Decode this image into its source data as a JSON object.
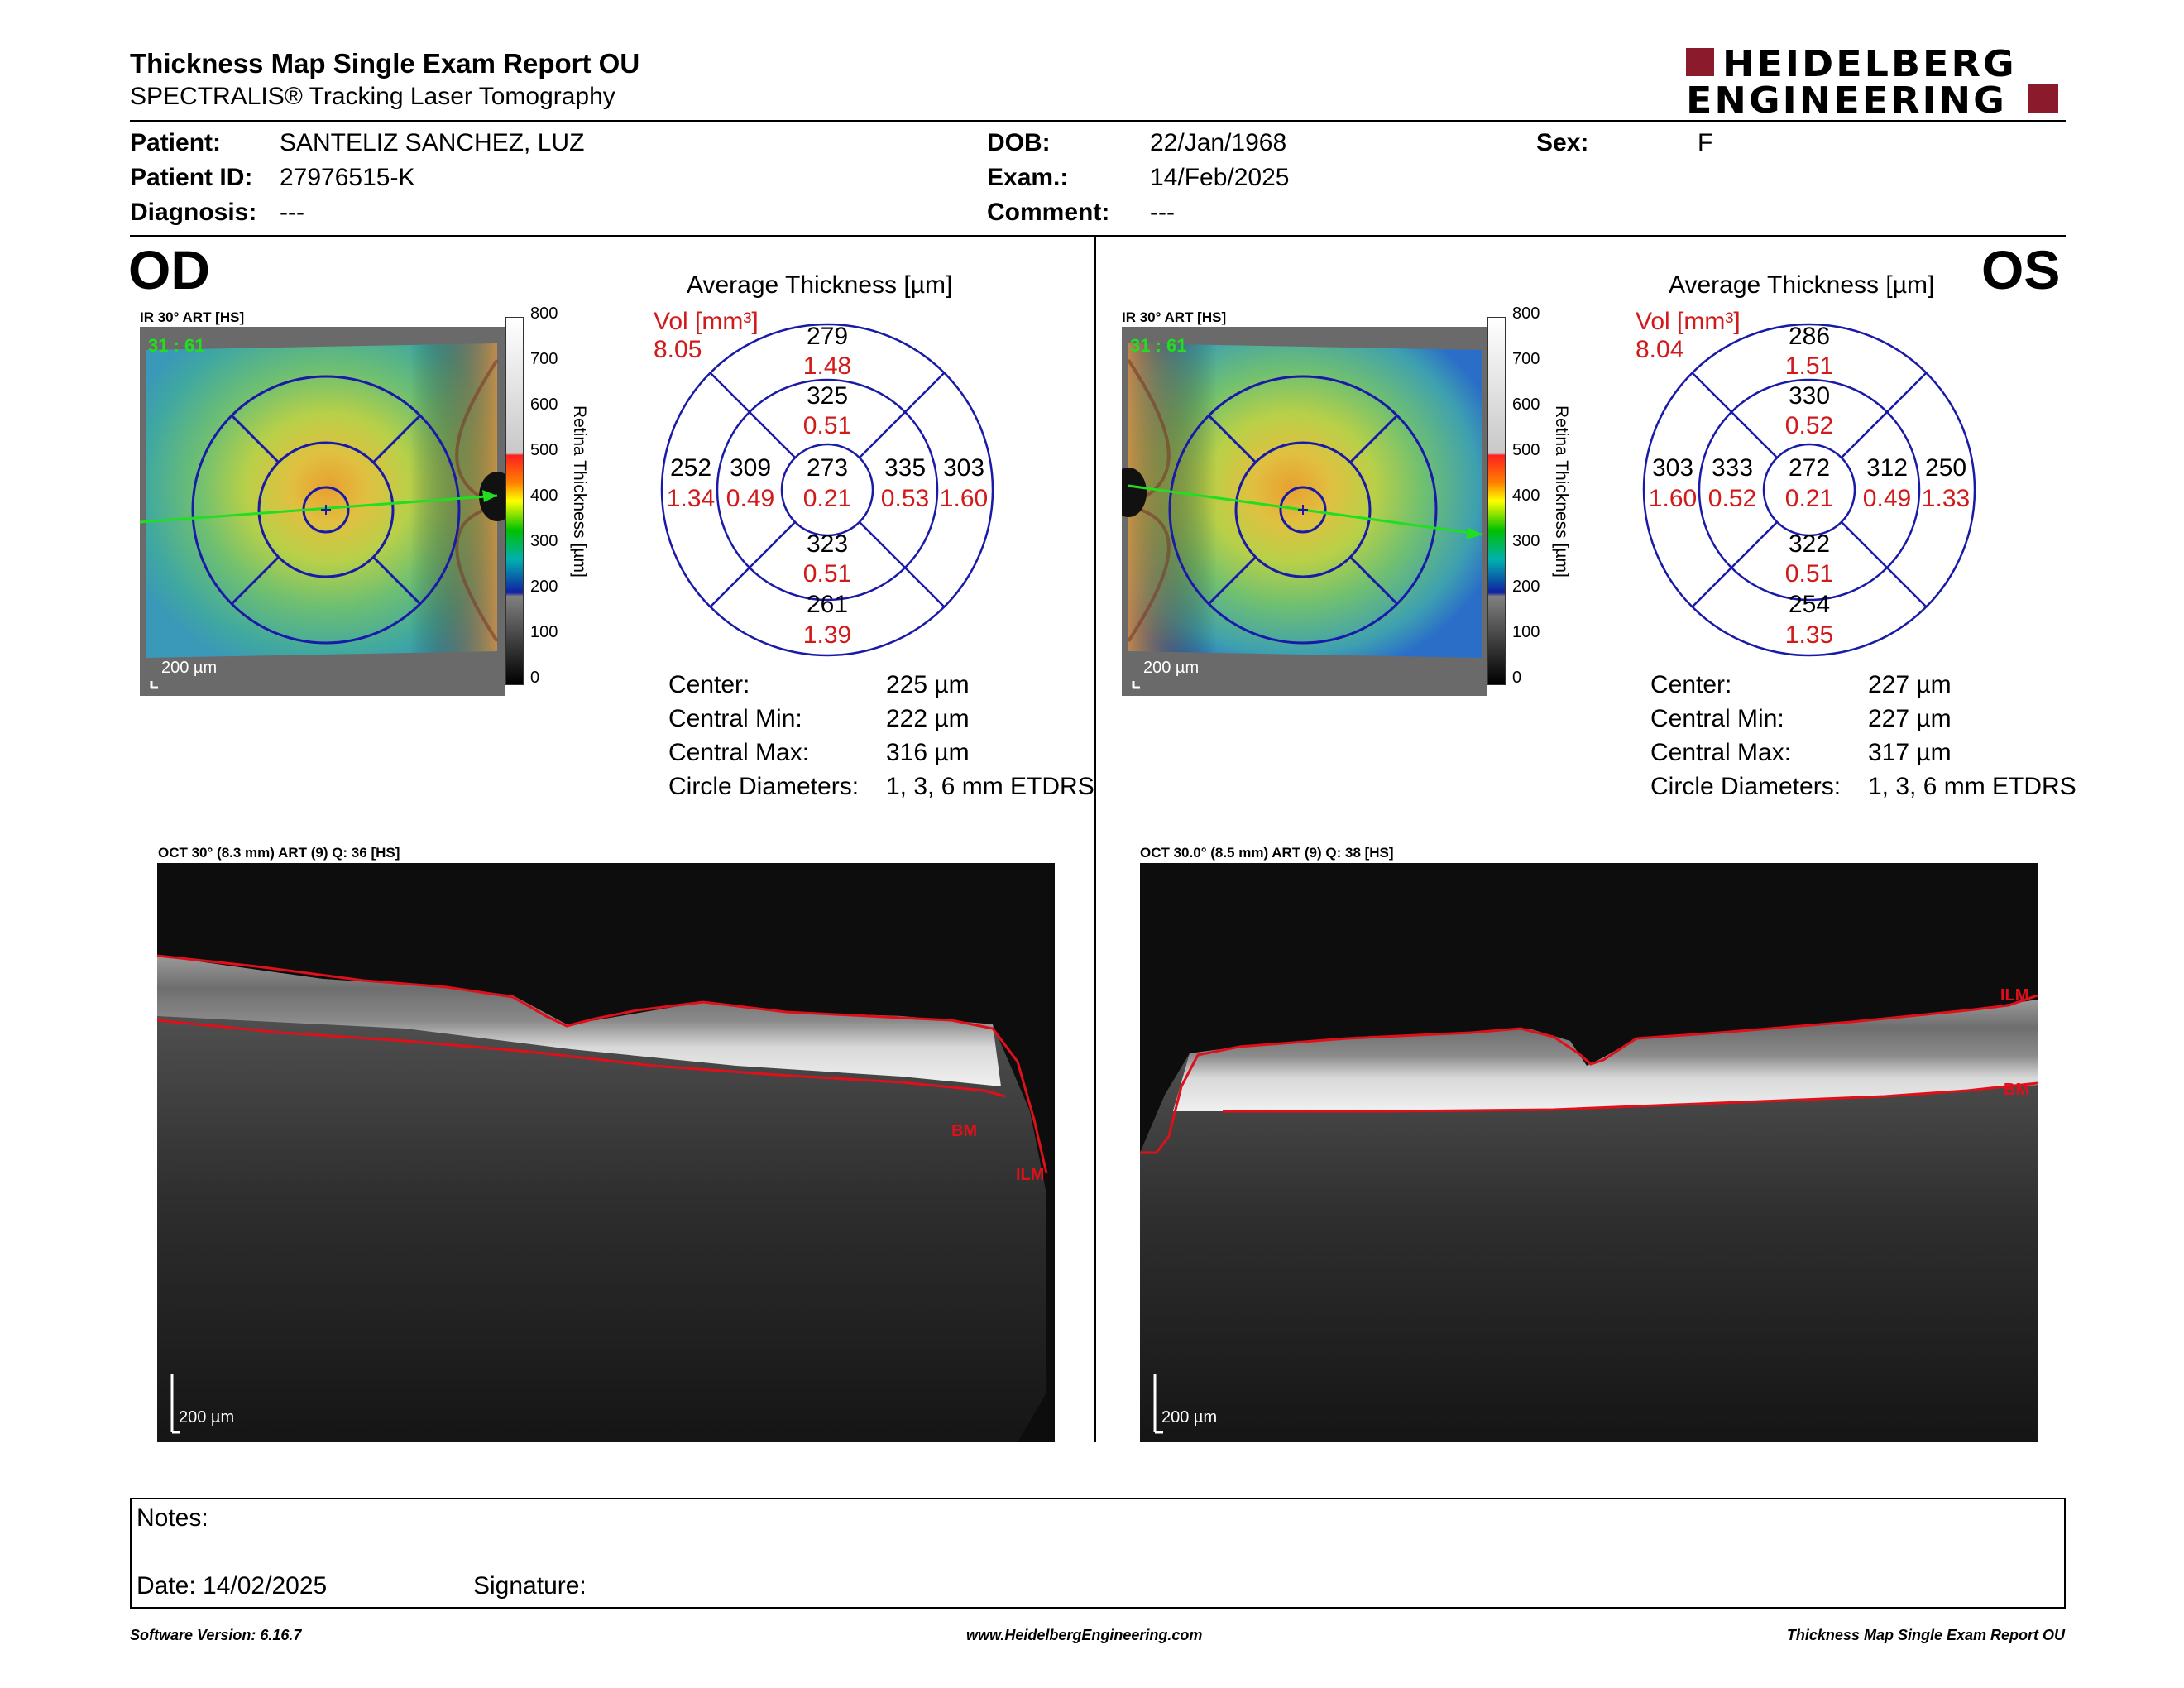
{
  "header": {
    "title": "Thickness Map Single Exam Report OU",
    "subtitle": "SPECTRALIS® Tracking Laser Tomography",
    "logo_line1": "HEIDELBERG",
    "logo_line2": "ENGINEERING"
  },
  "patient": {
    "patient_label": "Patient:",
    "patient_value": "SANTELIZ SANCHEZ, LUZ",
    "id_label": "Patient ID:",
    "id_value": "27976515-K",
    "diagnosis_label": "Diagnosis:",
    "diagnosis_value": "---",
    "dob_label": "DOB:",
    "dob_value": "22/Jan/1968",
    "exam_label": "Exam.:",
    "exam_value": "14/Feb/2025",
    "comment_label": "Comment:",
    "comment_value": "---",
    "sex_label": "Sex:",
    "sex_value": "F"
  },
  "od": {
    "eye": "OD",
    "ir_caption": "IR 30° ART [HS]",
    "ir_overlay": "31 : 61",
    "scale_label": "200 µm",
    "colorbar_ticks": [
      "800",
      "700",
      "600",
      "500",
      "400",
      "300",
      "200",
      "100",
      "0"
    ],
    "colorbar_title": "Retina  Thickness [µm]",
    "avg_title": "Average Thickness [µm]",
    "vol_label": "Vol [mm³]",
    "vol_value": "8.05",
    "sectors": {
      "sup_outer": "279",
      "sup_outer_vol": "1.48",
      "sup_inner": "325",
      "sup_inner_vol": "0.51",
      "left_outer": "252",
      "left_outer_vol": "1.34",
      "left_inner": "309",
      "left_inner_vol": "0.49",
      "center": "273",
      "center_vol": "0.21",
      "right_inner": "335",
      "right_inner_vol": "0.53",
      "right_outer": "303",
      "right_outer_vol": "1.60",
      "inf_inner": "323",
      "inf_inner_vol": "0.51",
      "inf_outer": "261",
      "inf_outer_vol": "1.39"
    },
    "stats": {
      "center_label": "Center:",
      "center_value": "225 µm",
      "min_label": "Central Min:",
      "min_value": "222 µm",
      "max_label": "Central Max:",
      "max_value": "316 µm",
      "diam_label": "Circle Diameters:",
      "diam_value": "1, 3, 6 mm ETDRS"
    },
    "oct_caption": "OCT 30° (8.3 mm) ART (9) Q: 36 [HS]",
    "oct_scale": "200 µm",
    "bm_label": "BM",
    "ilm_label": "ILM"
  },
  "os": {
    "eye": "OS",
    "ir_caption": "IR 30° ART [HS]",
    "ir_overlay": "31 : 61",
    "scale_label": "200 µm",
    "colorbar_ticks": [
      "800",
      "700",
      "600",
      "500",
      "400",
      "300",
      "200",
      "100",
      "0"
    ],
    "colorbar_title": "Retina  Thickness [µm]",
    "avg_title": "Average Thickness [µm]",
    "vol_label": "Vol [mm³]",
    "vol_value": "8.04",
    "sectors": {
      "sup_outer": "286",
      "sup_outer_vol": "1.51",
      "sup_inner": "330",
      "sup_inner_vol": "0.52",
      "left_outer": "303",
      "left_outer_vol": "1.60",
      "left_inner": "333",
      "left_inner_vol": "0.52",
      "center": "272",
      "center_vol": "0.21",
      "right_inner": "312",
      "right_inner_vol": "0.49",
      "right_outer": "250",
      "right_outer_vol": "1.33",
      "inf_inner": "322",
      "inf_inner_vol": "0.51",
      "inf_outer": "254",
      "inf_outer_vol": "1.35"
    },
    "stats": {
      "center_label": "Center:",
      "center_value": "227 µm",
      "min_label": "Central Min:",
      "min_value": "227 µm",
      "max_label": "Central Max:",
      "max_value": "317 µm",
      "diam_label": "Circle Diameters:",
      "diam_value": "1, 3, 6 mm ETDRS"
    },
    "oct_caption": "OCT 30.0° (8.5 mm) ART (9) Q: 38 [HS]",
    "oct_scale": "200 µm",
    "bm_label": "BM",
    "ilm_label": "ILM"
  },
  "notes": {
    "notes_label": "Notes:",
    "date_label": "Date: 14/02/2025",
    "signature_label": "Signature:"
  },
  "footer": {
    "software": "Software Version: 6.16.7",
    "website": "www.HeidelbergEngineering.com",
    "report_name": "Thickness Map Single Exam Report OU"
  },
  "colors": {
    "accent": "#8b1a2c",
    "circle": "#1a1aa8",
    "volume_red": "#d11a1a",
    "segment_red": "#e0101a",
    "scan_green": "#22dd22"
  }
}
